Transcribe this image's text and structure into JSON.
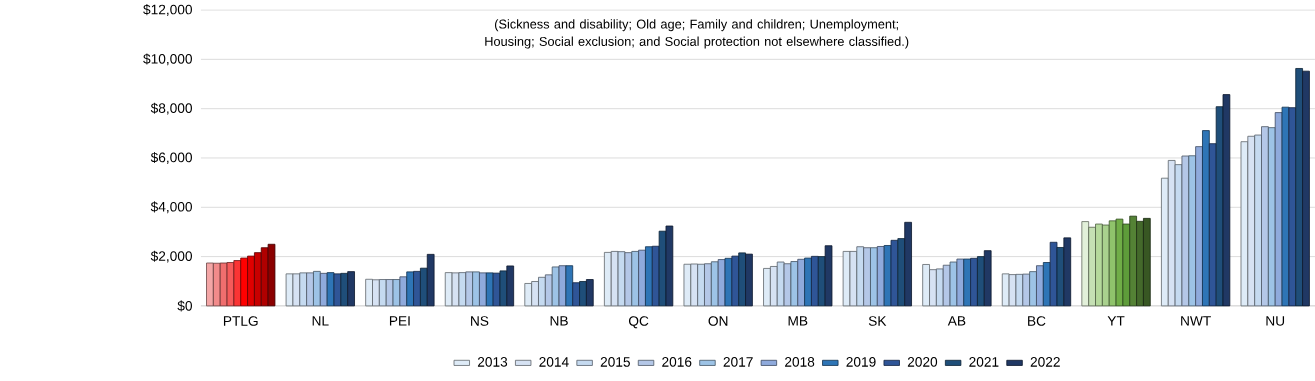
{
  "chart_data": {
    "type": "bar",
    "subtitle": "(Sickness and disability; Old age; Family and children; Unemployment; Housing; Social exclusion; and Social protection not elsewhere classified.)",
    "categories": [
      "PTLG",
      "NL",
      "PEI",
      "NS",
      "NB",
      "QC",
      "ON",
      "MB",
      "SK",
      "AB",
      "BC",
      "YT",
      "NWT",
      "NU"
    ],
    "series": [
      {
        "name": "2013",
        "color": "#deebf7",
        "colors": [
          "#f4a6a6",
          "#deebf7",
          "#deebf7",
          "#deebf7",
          "#deebf7",
          "#deebf7",
          "#deebf7",
          "#deebf7",
          "#deebf7",
          "#deebf7",
          "#deebf7",
          "#e2f0d9",
          "#deebf7",
          "#deebf7"
        ],
        "values": [
          1740,
          1300,
          1080,
          1350,
          910,
          2170,
          1690,
          1520,
          2210,
          1680,
          1300,
          3420,
          5180,
          6660
        ]
      },
      {
        "name": "2014",
        "color": "#d6e2f3",
        "colors": [
          "#f28b8b",
          "#d6e2f3",
          "#d6e2f3",
          "#d6e2f3",
          "#d6e2f3",
          "#d6e2f3",
          "#d6e2f3",
          "#d6e2f3",
          "#d6e2f3",
          "#d6e2f3",
          "#d6e2f3",
          "#c5e0b4",
          "#d6e2f3",
          "#d6e2f3"
        ],
        "values": [
          1730,
          1300,
          1060,
          1340,
          990,
          2210,
          1700,
          1600,
          2210,
          1470,
          1270,
          3190,
          5900,
          6880
        ]
      },
      {
        "name": "2015",
        "color": "#c5daf0",
        "colors": [
          "#f06e6e",
          "#c5daf0",
          "#c5daf0",
          "#c5daf0",
          "#c5daf0",
          "#c5daf0",
          "#c5daf0",
          "#c5daf0",
          "#c5daf0",
          "#c5daf0",
          "#c5daf0",
          "#b5d99c",
          "#c5daf0",
          "#c5daf0"
        ],
        "values": [
          1740,
          1340,
          1070,
          1350,
          1160,
          2200,
          1690,
          1780,
          2400,
          1500,
          1280,
          3320,
          5730,
          6930
        ]
      },
      {
        "name": "2016",
        "color": "#b4c7e7",
        "colors": [
          "#f55a5a",
          "#b4c7e7",
          "#b4c7e7",
          "#b4c7e7",
          "#b4c7e7",
          "#b4c7e7",
          "#b4c7e7",
          "#b4c7e7",
          "#b4c7e7",
          "#b4c7e7",
          "#b4c7e7",
          "#a9d18e",
          "#b4c7e7",
          "#b4c7e7"
        ],
        "values": [
          1760,
          1340,
          1070,
          1380,
          1260,
          2160,
          1710,
          1710,
          2360,
          1650,
          1290,
          3280,
          6080,
          7270
        ]
      },
      {
        "name": "2017",
        "color": "#9dc3e6",
        "colors": [
          "#fa3434",
          "#9dc3e6",
          "#9dc3e6",
          "#9dc3e6",
          "#9dc3e6",
          "#9dc3e6",
          "#9dc3e6",
          "#9dc3e6",
          "#9dc3e6",
          "#9dc3e6",
          "#9dc3e6",
          "#8fc36b",
          "#9dc3e6",
          "#9dc3e6"
        ],
        "values": [
          1840,
          1400,
          1070,
          1380,
          1580,
          2210,
          1790,
          1800,
          2360,
          1780,
          1390,
          3450,
          6090,
          7230
        ]
      },
      {
        "name": "2018",
        "color": "#8faadc",
        "colors": [
          "#ff0000",
          "#8faadc",
          "#8faadc",
          "#8faadc",
          "#8faadc",
          "#8faadc",
          "#8faadc",
          "#8faadc",
          "#8faadc",
          "#8faadc",
          "#8faadc",
          "#70ad47",
          "#8faadc",
          "#8faadc"
        ],
        "values": [
          1940,
          1320,
          1180,
          1340,
          1630,
          2260,
          1880,
          1890,
          2410,
          1900,
          1630,
          3520,
          6460,
          7840
        ]
      },
      {
        "name": "2019",
        "color": "#2e75b6",
        "colors": [
          "#e00000",
          "#2e75b6",
          "#2e75b6",
          "#2e75b6",
          "#2e75b6",
          "#2e75b6",
          "#2e75b6",
          "#2e75b6",
          "#2e75b6",
          "#2e75b6",
          "#2e75b6",
          "#5e9c3a",
          "#2e75b6",
          "#2e75b6"
        ],
        "values": [
          2020,
          1350,
          1380,
          1340,
          1630,
          2400,
          1930,
          1940,
          2450,
          1900,
          1760,
          3320,
          7110,
          8060
        ]
      },
      {
        "name": "2020",
        "color": "#2f5597",
        "colors": [
          "#c80000",
          "#2f5597",
          "#2f5597",
          "#2f5597",
          "#2f5597",
          "#2f5597",
          "#2f5597",
          "#2f5597",
          "#2f5597",
          "#2f5597",
          "#2f5597",
          "#548235",
          "#2f5597",
          "#2f5597"
        ],
        "values": [
          2160,
          1300,
          1400,
          1330,
          940,
          2420,
          2020,
          2010,
          2660,
          1930,
          2580,
          3640,
          6580,
          8040
        ]
      },
      {
        "name": "2021",
        "color": "#1f4e79",
        "colors": [
          "#b00000",
          "#1f4e79",
          "#1f4e79",
          "#1f4e79",
          "#1f4e79",
          "#1f4e79",
          "#1f4e79",
          "#1f4e79",
          "#1f4e79",
          "#1f4e79",
          "#1f4e79",
          "#44692b",
          "#1f4e79",
          "#1f4e79"
        ],
        "values": [
          2360,
          1320,
          1530,
          1420,
          990,
          3030,
          2150,
          2000,
          2730,
          2000,
          2370,
          3430,
          8080,
          9630
        ]
      },
      {
        "name": "2022",
        "color": "#203864",
        "colors": [
          "#8b0000",
          "#203864",
          "#203864",
          "#203864",
          "#203864",
          "#203864",
          "#203864",
          "#203864",
          "#203864",
          "#203864",
          "#203864",
          "#385723",
          "#203864",
          "#203864"
        ],
        "values": [
          2500,
          1390,
          2090,
          1620,
          1070,
          3240,
          2100,
          2440,
          3390,
          2240,
          2760,
          3550,
          8570,
          9520
        ]
      }
    ],
    "ylim": [
      0,
      12000
    ],
    "yticks": [
      {
        "value": 0,
        "label": "$0"
      },
      {
        "value": 2000,
        "label": "$2,000"
      },
      {
        "value": 4000,
        "label": "$4,000"
      },
      {
        "value": 6000,
        "label": "$6,000"
      },
      {
        "value": 8000,
        "label": "$8,000"
      },
      {
        "value": 10000,
        "label": "$10,000"
      },
      {
        "value": 12000,
        "label": "$12,000"
      }
    ],
    "grid": "y",
    "legend": "bottom"
  }
}
